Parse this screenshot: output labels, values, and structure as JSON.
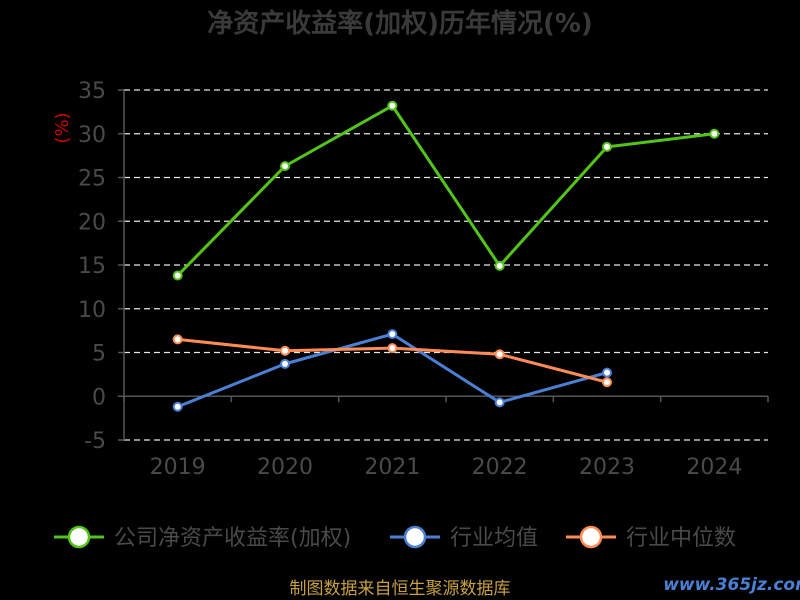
{
  "chart_data": {
    "type": "line",
    "title": "净资产收益率(加权)历年情况(%)",
    "ylabel": "(%)",
    "categories": [
      "2019",
      "2020",
      "2021",
      "2022",
      "2023",
      "2024"
    ],
    "ylim": [
      -5,
      35
    ],
    "yticks": [
      "35",
      "30",
      "25",
      "20",
      "15",
      "10",
      "5",
      "0",
      "-5"
    ],
    "grid": true,
    "legend_position": "bottom",
    "series": [
      {
        "name": "公司净资产收益率(加权)",
        "color": "#52c41a",
        "values": [
          13.8,
          26.3,
          33.2,
          14.9,
          28.5,
          30.0
        ]
      },
      {
        "name": "行业均值",
        "color": "#4a7fd4",
        "values": [
          -1.2,
          3.7,
          7.1,
          -0.7,
          2.7,
          null
        ]
      },
      {
        "name": "行业中位数",
        "color": "#ff8c55",
        "values": [
          6.5,
          5.2,
          5.5,
          4.8,
          1.6,
          null
        ]
      }
    ]
  },
  "footer": {
    "source": "制图数据来自恒生聚源数据库",
    "watermark": "www.365jz.com"
  }
}
